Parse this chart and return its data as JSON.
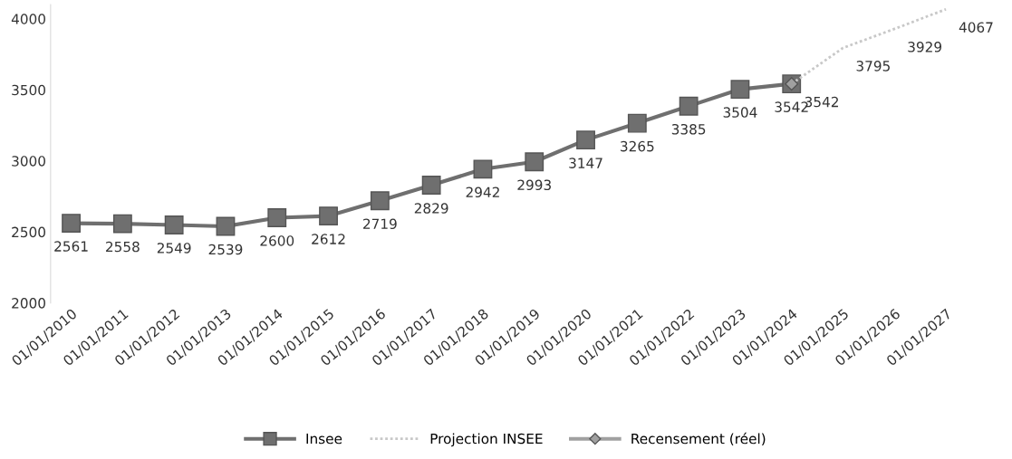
{
  "chart_data": {
    "type": "line",
    "categories": [
      "01/01/2010",
      "01/01/2011",
      "01/01/2012",
      "01/01/2013",
      "01/01/2014",
      "01/01/2015",
      "01/01/2016",
      "01/01/2017",
      "01/01/2018",
      "01/01/2019",
      "01/01/2020",
      "01/01/2021",
      "01/01/2022",
      "01/01/2023",
      "01/01/2024",
      "01/01/2025",
      "01/01/2026",
      "01/01/2027"
    ],
    "series": [
      {
        "name": "Insee",
        "color": "#6f6f6f",
        "marker": "square",
        "line_style": "solid",
        "values": [
          2561,
          2558,
          2549,
          2539,
          2600,
          2612,
          2719,
          2829,
          2942,
          2993,
          3147,
          3265,
          3385,
          3504,
          3542,
          null,
          null,
          null
        ]
      },
      {
        "name": "Projection INSEE",
        "color": "#c8c8c8",
        "marker": "none",
        "line_style": "dotted",
        "values": [
          null,
          null,
          null,
          null,
          null,
          null,
          null,
          null,
          null,
          null,
          null,
          null,
          null,
          null,
          3542,
          3795,
          3929,
          4067
        ],
        "value_labels": [
          null,
          null,
          null,
          null,
          null,
          null,
          null,
          null,
          null,
          null,
          null,
          null,
          null,
          null,
          null,
          "3795",
          "3929",
          "4067"
        ]
      },
      {
        "name": "Recensement (réel)",
        "color": "#a0a0a0",
        "marker": "diamond",
        "line_style": "solid",
        "values": [
          null,
          null,
          null,
          null,
          null,
          null,
          null,
          null,
          null,
          null,
          null,
          null,
          null,
          null,
          3542,
          null,
          null,
          null
        ]
      }
    ],
    "ylim": [
      2000,
      4100
    ],
    "yticks": [
      2000,
      2500,
      3000,
      3500,
      4000
    ],
    "grid": false,
    "legend": "bottom",
    "data_labels": true
  }
}
